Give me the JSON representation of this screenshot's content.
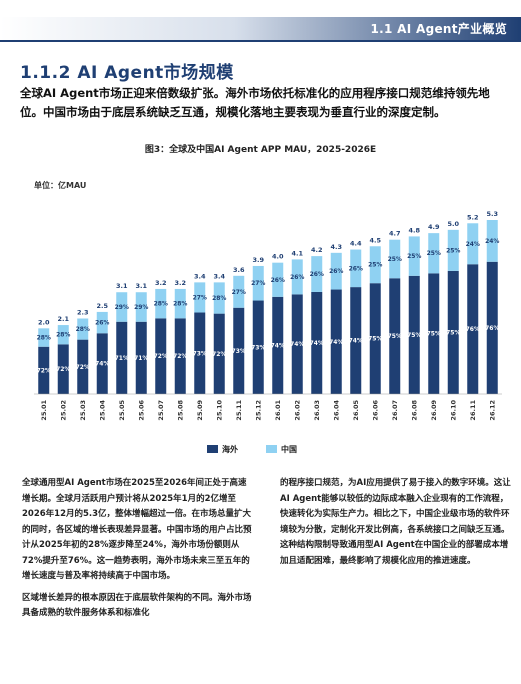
{
  "header": {
    "section_tag": "1.1 AI Agent产业概览"
  },
  "section": {
    "title": "1.1.2 AI Agent市场规模",
    "lead": "全球AI Agent市场正迎来倍数级扩张。海外市场依托标准化的应用程序接口规范维持领先地位。中国市场由于底层系统缺乏互通，规模化落地主要表现为垂直行业的深度定制。"
  },
  "figure": {
    "caption": "图3：全球及中国AI Agent APP MAU，2025-2026E",
    "unit": "单位：亿MAU"
  },
  "chart_data": {
    "type": "bar",
    "stacked": true,
    "categories": [
      "25.01",
      "25.02",
      "25.03",
      "25.04",
      "25.05",
      "25.06",
      "25.07",
      "25.08",
      "25.09",
      "25.10",
      "25.11",
      "25.12",
      "26.01",
      "26.02",
      "26.03",
      "26.04",
      "26.05",
      "26.06",
      "26.07",
      "26.08",
      "26.09",
      "26.10",
      "26.11",
      "26.12"
    ],
    "totals": [
      2.0,
      2.1,
      2.3,
      2.5,
      3.1,
      3.1,
      3.2,
      3.2,
      3.4,
      3.4,
      3.6,
      3.9,
      4.0,
      4.1,
      4.2,
      4.3,
      4.4,
      4.5,
      4.7,
      4.8,
      4.9,
      5.0,
      5.2,
      5.3
    ],
    "total_labels": [
      "2.0",
      "2.1",
      "2.3",
      "2.5",
      "3.1",
      "3.1",
      "3.2",
      "3.2",
      "3.4",
      "3.4",
      "3.6",
      "3.9",
      "4.0",
      "4.1",
      "4.2",
      "4.3",
      "4.4",
      "4.5",
      "4.7",
      "4.8",
      "4.9",
      "5.0",
      "5.2",
      "5.3"
    ],
    "series": [
      {
        "name": "海外",
        "color": "#1f3f73",
        "shares": [
          72,
          72,
          72,
          74,
          71,
          71,
          72,
          72,
          73,
          72,
          73,
          73,
          74,
          74,
          74,
          74,
          74,
          75,
          75,
          75,
          75,
          75,
          76,
          76
        ],
        "labels": [
          "72%",
          "72%",
          "72%",
          "74%",
          "71%",
          "71%",
          "72%",
          "72%",
          "73%",
          "72%",
          "73%",
          "73%",
          "74%",
          "74%",
          "74%",
          "74%",
          "74%",
          "75%",
          "75%",
          "75%",
          "75%",
          "75%",
          "76%",
          "76%"
        ]
      },
      {
        "name": "中国",
        "color": "#8fd1f2",
        "shares": [
          28,
          28,
          28,
          26,
          29,
          29,
          28,
          28,
          27,
          28,
          27,
          27,
          26,
          26,
          26,
          26,
          26,
          25,
          25,
          25,
          25,
          25,
          24,
          24
        ],
        "labels": [
          "28%",
          "28%",
          "28%",
          "26%",
          "29%",
          "29%",
          "28%",
          "28%",
          "27%",
          "28%",
          "27%",
          "27%",
          "26%",
          "26%",
          "26%",
          "26%",
          "26%",
          "25%",
          "25%",
          "25%",
          "25%",
          "25%",
          "24%",
          "24%"
        ]
      }
    ],
    "ylim": [
      0,
      6
    ],
    "grid": false,
    "legend_position": "bottom"
  },
  "body": {
    "left": [
      "全球通用型AI Agent市场在2025至2026年间正处于高速增长期。全球月活跃用户预计将从2025年1月的2亿增至2026年12月的5.3亿，整体增幅超过一倍。在市场总量扩大的同时，各区域的增长表现差异显著。中国市场的用户占比预计从2025年初的28%逐步降至24%，海外市场份额则从72%提升至76%。这一趋势表明，海外市场未来三至五年的增长速度与普及率将持续高于中国市场。",
      "区域增长差异的根本原因在于底层软件架构的不同。海外市场具备成熟的软件服务体系和标准化"
    ],
    "right": [
      "的程序接口规范，为AI应用提供了易于接入的数字环境。这让AI Agent能够以较低的边际成本融入企业现有的工作流程，快速转化为实际生产力。相比之下，中国企业级市场的软件环境较为分散，定制化开发比例高，各系统接口之间缺乏互通。这种结构限制导致通用型AI Agent在中国企业的部署成本增加且适配困难，最终影响了规模化应用的推进速度。"
    ]
  }
}
